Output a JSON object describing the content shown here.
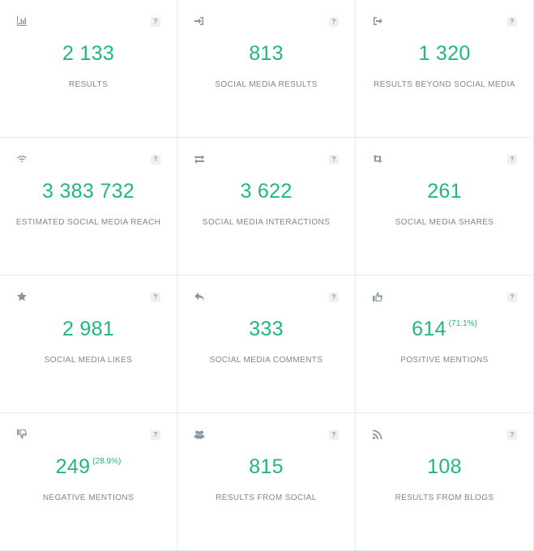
{
  "help_label": "?",
  "cards": [
    {
      "icon": "bar-chart-icon",
      "value": "2 133",
      "percent": null,
      "label": "RESULTS"
    },
    {
      "icon": "sign-in-icon",
      "value": "813",
      "percent": null,
      "label": "SOCIAL MEDIA RESULTS"
    },
    {
      "icon": "sign-out-icon",
      "value": "1 320",
      "percent": null,
      "label": "RESULTS BEYOND SOCIAL MEDIA"
    },
    {
      "icon": "wifi-icon",
      "value": "3 383 732",
      "percent": null,
      "label": "ESTIMATED SOCIAL MEDIA REACH"
    },
    {
      "icon": "exchange-icon",
      "value": "3 622",
      "percent": null,
      "label": "SOCIAL MEDIA INTERACTIONS"
    },
    {
      "icon": "retweet-icon",
      "value": "261",
      "percent": null,
      "label": "SOCIAL MEDIA SHARES"
    },
    {
      "icon": "star-icon",
      "value": "2 981",
      "percent": null,
      "label": "SOCIAL MEDIA LIKES"
    },
    {
      "icon": "reply-icon",
      "value": "333",
      "percent": null,
      "label": "SOCIAL MEDIA COMMENTS"
    },
    {
      "icon": "thumbs-up-icon",
      "value": "614",
      "percent": "(71.1%)",
      "label": "POSITIVE MENTIONS"
    },
    {
      "icon": "thumbs-down-icon",
      "value": "249",
      "percent": "(28.9%)",
      "label": "NEGATIVE MENTIONS"
    },
    {
      "icon": "users-icon",
      "value": "815",
      "percent": null,
      "label": "RESULTS FROM SOCIAL"
    },
    {
      "icon": "rss-icon",
      "value": "108",
      "percent": null,
      "label": "RESULTS FROM BLOGS"
    }
  ],
  "colors": {
    "accent": "#1fb87a",
    "label": "#7b8794",
    "icon": "#8a96a3",
    "border": "#e6e9ed"
  }
}
